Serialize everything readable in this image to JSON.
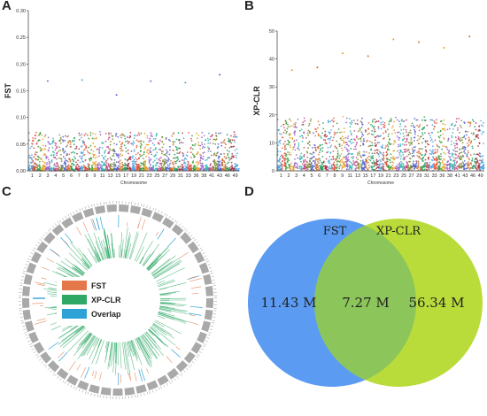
{
  "panels": {
    "a": "A",
    "b": "B",
    "c": "C",
    "d": "D"
  },
  "chart_data": [
    {
      "type": "scatter",
      "title": "",
      "xlabel": "Chromosome",
      "ylabel": "FST",
      "ylim": [
        0,
        0.3
      ],
      "yticks": [
        "0.00",
        "0.05",
        "0.10",
        "0.15",
        "0.20",
        "0.25",
        "0.30"
      ],
      "xticks": [
        "1",
        "2",
        "3",
        "4",
        "5",
        "6",
        "7",
        "8",
        "9",
        "11",
        "13",
        "15",
        "17",
        "19",
        "21",
        "23",
        "25",
        "27",
        "29",
        "31",
        "33",
        "36",
        "38",
        "41",
        "43",
        "46",
        "49"
      ],
      "chromosomes": 49,
      "notable_peaks": [
        0.168,
        0.17,
        0.142,
        0.168,
        0.165,
        0.18
      ]
    },
    {
      "type": "scatter",
      "title": "",
      "xlabel": "Chromosome",
      "ylabel": "XP-CLR",
      "ylim": [
        0,
        50
      ],
      "yticks": [
        "0",
        "10",
        "20",
        "30",
        "40",
        "50"
      ],
      "xticks": [
        "1",
        "2",
        "3",
        "4",
        "5",
        "6",
        "7",
        "8",
        "9",
        "11",
        "13",
        "15",
        "17",
        "19",
        "21",
        "23",
        "25",
        "27",
        "29",
        "31",
        "33",
        "36",
        "38",
        "41",
        "43",
        "46",
        "49"
      ],
      "chromosomes": 49,
      "notable_peaks": [
        36,
        37,
        42,
        41,
        47,
        46,
        44,
        48
      ]
    },
    {
      "type": "circos",
      "legend": [
        "FST",
        "XP-CLR",
        "Overlap"
      ],
      "legend_colors": [
        "#e4784a",
        "#2fa866",
        "#2ea2d6"
      ],
      "chromosomes": 49
    },
    {
      "type": "venn",
      "sets": [
        {
          "name": "FST",
          "only_value": "11.43 M",
          "color": "#5b9bf2"
        },
        {
          "name": "XP-CLR",
          "only_value": "56.34 M",
          "color": "#b9dc3a"
        }
      ],
      "overlap_value": "7.27 M",
      "overlap_color": "#8cc55a"
    }
  ]
}
